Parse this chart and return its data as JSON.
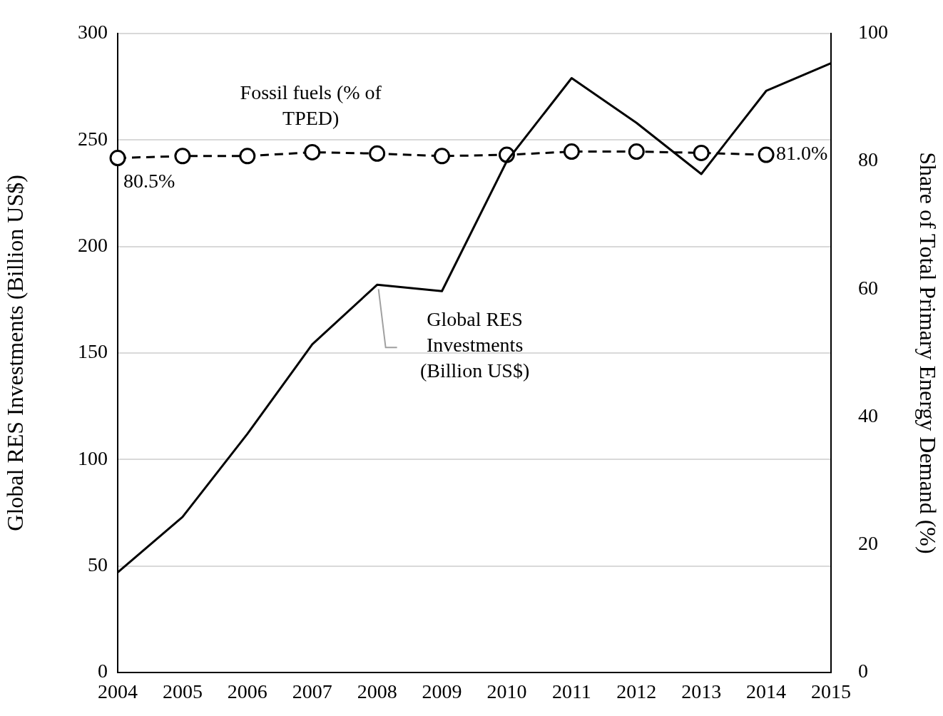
{
  "chart_data": {
    "type": "line",
    "ylabel": "Global RES Investments (Billion US$)",
    "y2label": "Share of Total Primary Energy Demand (%)",
    "categories": [
      "2004",
      "2005",
      "2006",
      "2007",
      "2008",
      "2009",
      "2010",
      "2011",
      "2012",
      "2013",
      "2014",
      "2015"
    ],
    "series": [
      {
        "name": "Global RES Investments (Billion US$)",
        "color": "#000000",
        "axis": "y",
        "marker": "none",
        "line_style": "solid",
        "values": [
          47,
          73,
          112,
          154,
          182,
          179,
          240,
          279,
          258,
          234,
          273,
          286
        ]
      },
      {
        "name": "Fossil fuels (% of TPED)",
        "color": "#000000",
        "axis": "y2",
        "marker": "circle",
        "line_style": "dashed",
        "values": [
          80.5,
          80.8,
          80.8,
          81.4,
          81.2,
          80.8,
          81.0,
          81.5,
          81.5,
          81.3,
          81.0,
          null
        ],
        "value_labels": [
          "80.5%",
          null,
          null,
          null,
          null,
          null,
          null,
          null,
          null,
          null,
          "81.0%",
          null
        ]
      }
    ],
    "ylim": [
      0,
      300
    ],
    "yticks": [
      0,
      50,
      100,
      150,
      200,
      250,
      300
    ],
    "y2lim": [
      0,
      100
    ],
    "y2ticks": [
      0,
      20,
      40,
      60,
      80,
      100
    ],
    "grid": "y",
    "legend": false
  }
}
